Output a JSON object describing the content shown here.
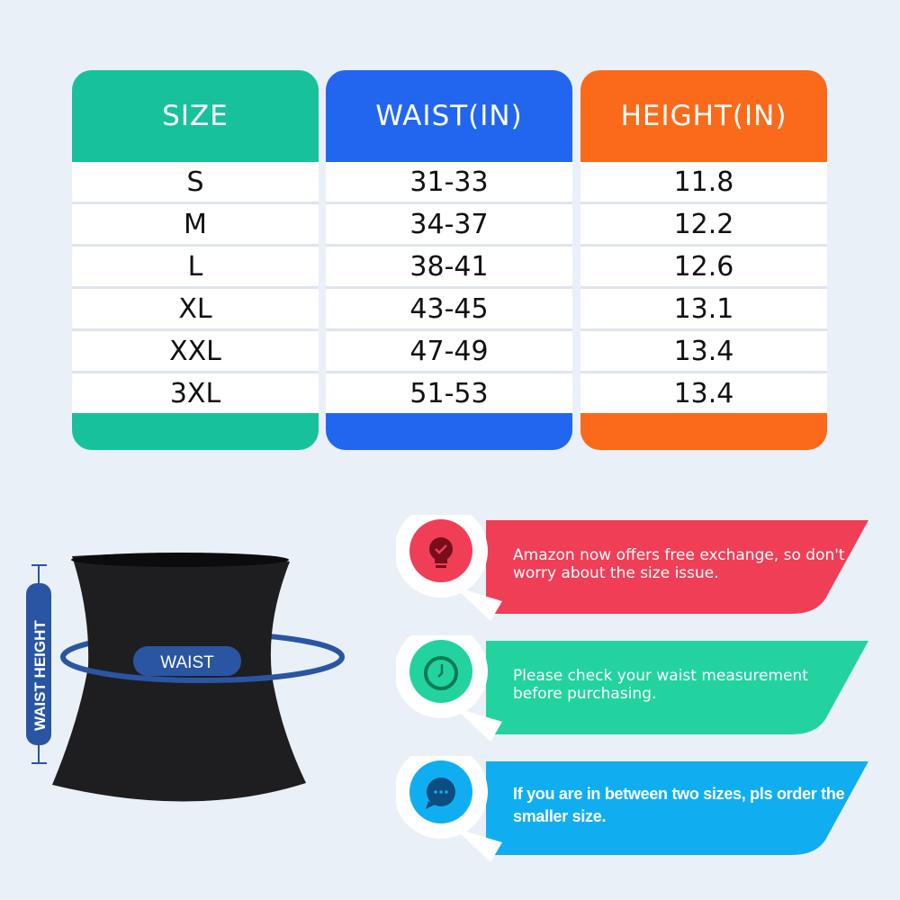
{
  "size_table": {
    "columns": [
      {
        "header": "SIZE",
        "color": "#17c19c",
        "values": [
          "S",
          "M",
          "L",
          "XL",
          "XXL",
          "3XL"
        ]
      },
      {
        "header": "WAIST(IN)",
        "color": "#2266f0",
        "values": [
          "31-33",
          "34-37",
          "38-41",
          "43-45",
          "47-49",
          "51-53"
        ]
      },
      {
        "header": "HEIGHT(IN)",
        "color": "#fb6a1a",
        "values": [
          "11.8",
          "12.2",
          "12.6",
          "13.1",
          "13.4",
          "13.4"
        ]
      }
    ]
  },
  "diagram": {
    "waist_label": "WAIST",
    "height_label": "WAIST HEIGHT",
    "accent": "#2a55a3"
  },
  "notes": [
    {
      "icon": "lightbulb-check-icon",
      "color": "#f03e57",
      "text": "Amazon now offers free exchange, so don't worry about the size issue."
    },
    {
      "icon": "clock-icon",
      "color": "#22d3a0",
      "text": "Please check your waist measurement before purchasing."
    },
    {
      "icon": "chat-bubble-icon",
      "color": "#10aef0",
      "text": "If you are in between two sizes, pls order the smaller size."
    }
  ]
}
